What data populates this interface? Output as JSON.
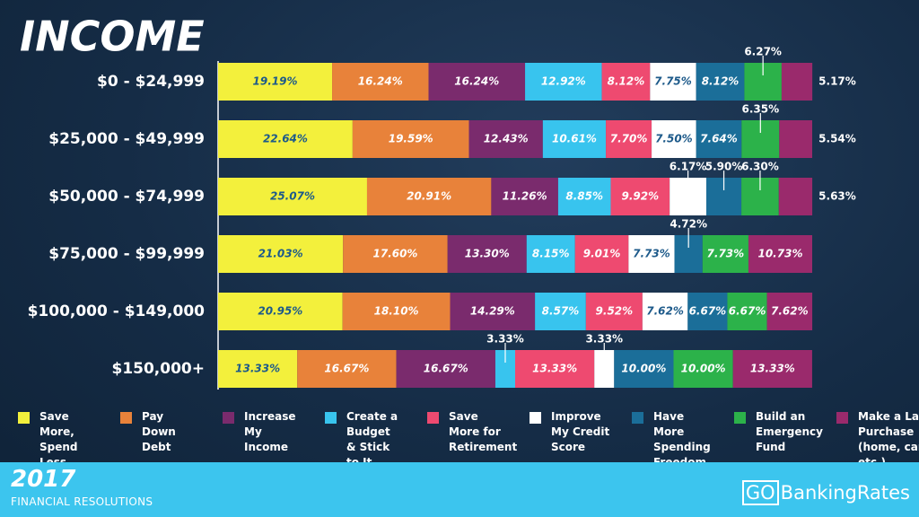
{
  "chart_data": {
    "type": "bar",
    "orientation": "horizontal",
    "stacked": true,
    "title": "INCOME",
    "xlim": [
      0,
      100
    ],
    "categories": [
      "$0 - $24,999",
      "$25,000 - $49,999",
      "$50,000 - $74,999",
      "$75,000 - $99,999",
      "$100,000 - $149,000",
      "$150,000+"
    ],
    "series": [
      {
        "name": "Save More, Spend Less",
        "color": "#f3f03c",
        "values": [
          19.19,
          22.64,
          25.07,
          21.03,
          20.95,
          13.33
        ],
        "value_labels": [
          "19.19%",
          "22.64%",
          "25.07%",
          "21.03%",
          "20.95%",
          "13.33%"
        ]
      },
      {
        "name": "Pay Down Debt",
        "color": "#e8823a",
        "values": [
          16.24,
          19.59,
          20.91,
          17.6,
          18.1,
          16.67
        ],
        "value_labels": [
          "16.24%",
          "19.59%",
          "20.91%",
          "17.60%",
          "18.10%",
          "16.67%"
        ]
      },
      {
        "name": "Increase My Income",
        "color": "#7a2b6d",
        "values": [
          16.24,
          12.43,
          11.26,
          13.3,
          14.29,
          16.67
        ],
        "value_labels": [
          "16.24%",
          "12.43%",
          "11.26%",
          "13.30%",
          "14.29%",
          "16.67%"
        ]
      },
      {
        "name": "Create a Budget & Stick to It",
        "color": "#38c4ee",
        "values": [
          12.92,
          10.61,
          8.85,
          8.15,
          8.57,
          3.33
        ],
        "value_labels": [
          "12.92%",
          "10.61%",
          "8.85%",
          "8.15%",
          "8.57%",
          "3.33%"
        ]
      },
      {
        "name": "Save More for Retirement",
        "color": "#ee4a70",
        "values": [
          8.12,
          7.7,
          9.92,
          9.01,
          9.52,
          13.33
        ],
        "value_labels": [
          "8.12%",
          "7.70%",
          "9.92%",
          "9.01%",
          "9.52%",
          "13.33%"
        ]
      },
      {
        "name": "Improve My Credit Score",
        "color": "#ffffff",
        "values": [
          7.75,
          7.5,
          6.17,
          7.73,
          7.62,
          3.33
        ],
        "value_labels": [
          "7.75%",
          "7.50%",
          "6.17%",
          "7.73%",
          "7.62%",
          "3.33%"
        ]
      },
      {
        "name": "Have More Spending Freedom",
        "color": "#1b6e99",
        "values": [
          8.12,
          7.64,
          5.9,
          4.72,
          6.67,
          10.0
        ],
        "value_labels": [
          "8.12%",
          "7.64%",
          "5.90%",
          "4.72%",
          "6.67%",
          "10.00%"
        ]
      },
      {
        "name": "Build an Emergency Fund",
        "color": "#2cb24a",
        "values": [
          6.27,
          6.35,
          6.3,
          7.73,
          6.67,
          10.0
        ],
        "value_labels": [
          "6.27%",
          "6.35%",
          "6.30%",
          "7.73%",
          "6.67%",
          "10.00%"
        ]
      },
      {
        "name": "Make a Large Purchase (home, car, etc.)",
        "color": "#9a2a6c",
        "values": [
          5.17,
          5.54,
          5.63,
          10.73,
          7.62,
          13.33
        ],
        "value_labels": [
          "5.17%",
          "5.54%",
          "5.63%",
          "10.73%",
          "7.62%",
          "13.33%"
        ]
      }
    ]
  },
  "footer": {
    "year": "2017",
    "subtitle": "FINANCIAL RESOLUTIONS"
  },
  "logo": {
    "go": "GO",
    "text": "BankingRates"
  }
}
